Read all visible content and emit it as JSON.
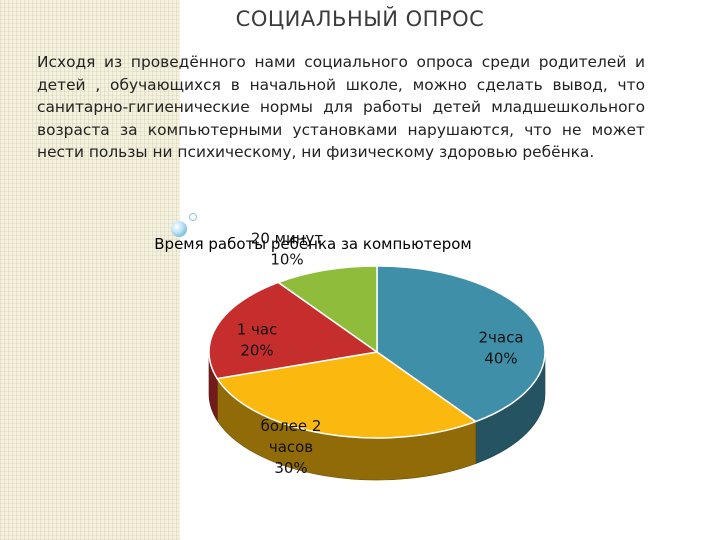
{
  "slide": {
    "title": "СОЦИАЛЬНЫЙ ОПРОС",
    "text": "Исходя из проведённого нами социального опроса среди родителей и детей , обучающихся в начальной школе, можно сделать вывод, что санитарно-гигиенические нормы для работы детей младшешкольного возраста за компьютерными установками нарушаются, что не может нести пользы ни психическому, ни физическому здоровью ребёнка."
  },
  "chart_data": {
    "type": "pie",
    "title": "Время работы ребёнка за компьютером",
    "categories": [
      "2часа",
      "более 2 часов",
      "1 час",
      "20 минут"
    ],
    "values": [
      40,
      30,
      20,
      10
    ],
    "labels": [
      "2часа\n40%",
      "более 2\nчасов\n30%",
      "1 час\n20%",
      "20 минут\n10%"
    ],
    "colors": [
      "#3f8fa8",
      "#fbb80f",
      "#c62d2d",
      "#8fbc3a"
    ]
  }
}
